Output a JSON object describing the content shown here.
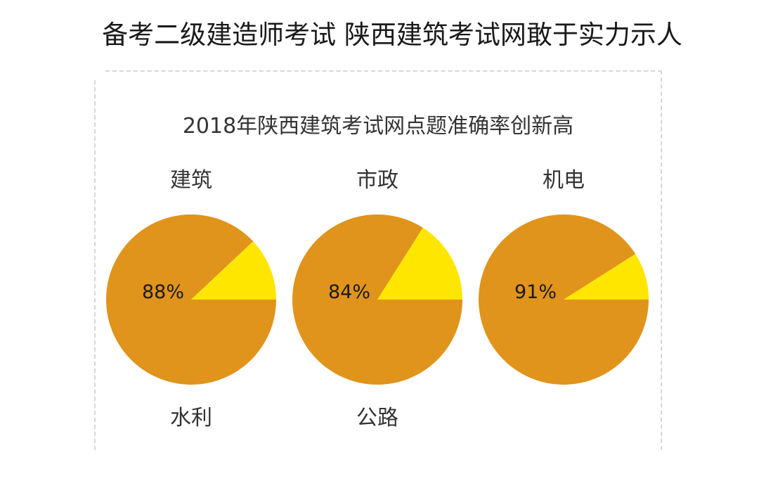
{
  "headline": "备考二级建造师考试 陕西建筑考试网敢于实力示人",
  "colors": {
    "pie_main": "#E0941C",
    "pie_accent": "#FFE600",
    "panel_border": "#D6D6D6"
  },
  "chart_data": {
    "type": "pie",
    "title": "2018年陕西建筑考试网点题准确率创新高",
    "pies": [
      {
        "category": "建筑",
        "label": "88%",
        "slices": [
          {
            "value": 88,
            "color": "#E0941C"
          },
          {
            "value": 12,
            "color": "#FFE600"
          }
        ]
      },
      {
        "category": "市政",
        "label": "84%",
        "slices": [
          {
            "value": 84,
            "color": "#E0941C"
          },
          {
            "value": 16,
            "color": "#FFE600"
          }
        ]
      },
      {
        "category": "机电",
        "label": "91%",
        "slices": [
          {
            "value": 91,
            "color": "#E0941C"
          },
          {
            "value": 9,
            "color": "#FFE600"
          }
        ]
      }
    ],
    "extra_categories": [
      "水利",
      "公路"
    ]
  }
}
